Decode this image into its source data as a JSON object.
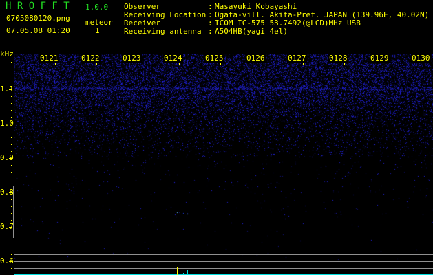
{
  "header": {
    "app_title": "H R O F F T",
    "version": "1.0.0",
    "filename": "0705080120.png",
    "datetime": "07.05.08 01:20",
    "meteor_label": "meteor",
    "meteor_count": "1"
  },
  "info": [
    {
      "label": "Observer",
      "value": "Masayuki Kobayashi"
    },
    {
      "label": "Receiving Location",
      "value": "Ogata-vill. Akita-Pref. JAPAN (139.96E, 40.02N)"
    },
    {
      "label": "Receiver",
      "value": "ICOM IC-575 53.7492(@LCD)MHz USB"
    },
    {
      "label": "Receiving antenna",
      "value": "A504HB(yagi 4el)"
    }
  ],
  "spectrogram": {
    "y_unit": "kHz",
    "y_ticks": [
      "1.1",
      "1.0",
      "0.9",
      "0.8",
      "0.7",
      "0.6"
    ],
    "time_ticks": [
      "0121",
      "0122",
      "0123",
      "0124",
      "0125",
      "0126",
      "0127",
      "0128",
      "0129",
      "0130"
    ],
    "colors": {
      "noise": "#2020ff",
      "axis": "#ffff00",
      "title": "#22dd22",
      "baseline": "#00e0e0",
      "grid": "#909090"
    }
  }
}
